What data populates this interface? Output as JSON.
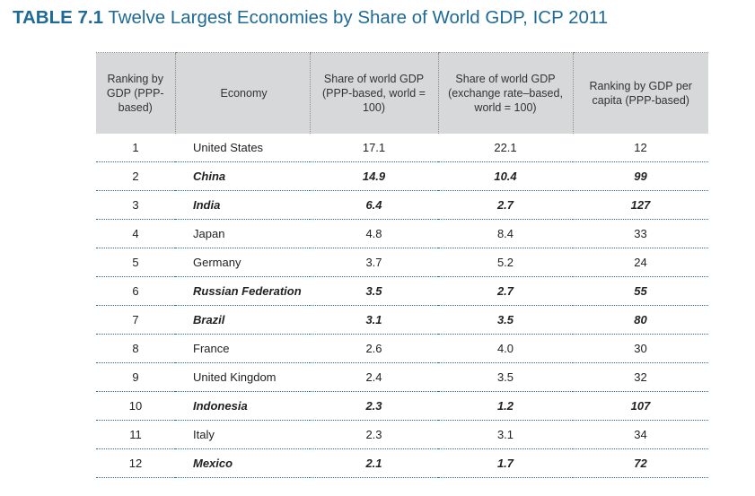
{
  "title": {
    "number": "TABLE 7.1",
    "text": "Twelve Largest Economies by Share of World GDP, ICP 2011"
  },
  "table": {
    "headers": [
      "Ranking by GDP (PPP-based)",
      "Economy",
      "Share of world GDP (PPP-based, world = 100)",
      "Share of world GDP (exchange rate–based, world = 100)",
      "Ranking by GDP per capita (PPP-based)"
    ],
    "rows": [
      {
        "rank": "1",
        "economy": "United States",
        "ppp": "17.1",
        "xr": "22.1",
        "pc": "12",
        "highlight": false
      },
      {
        "rank": "2",
        "economy": "China",
        "ppp": "14.9",
        "xr": "10.4",
        "pc": "99",
        "highlight": true
      },
      {
        "rank": "3",
        "economy": "India",
        "ppp": "6.4",
        "xr": "2.7",
        "pc": "127",
        "highlight": true
      },
      {
        "rank": "4",
        "economy": "Japan",
        "ppp": "4.8",
        "xr": "8.4",
        "pc": "33",
        "highlight": false
      },
      {
        "rank": "5",
        "economy": "Germany",
        "ppp": "3.7",
        "xr": "5.2",
        "pc": "24",
        "highlight": false
      },
      {
        "rank": "6",
        "economy": "Russian Federation",
        "ppp": "3.5",
        "xr": "2.7",
        "pc": "55",
        "highlight": true
      },
      {
        "rank": "7",
        "economy": "Brazil",
        "ppp": "3.1",
        "xr": "3.5",
        "pc": "80",
        "highlight": true
      },
      {
        "rank": "8",
        "economy": "France",
        "ppp": "2.6",
        "xr": "4.0",
        "pc": "30",
        "highlight": false
      },
      {
        "rank": "9",
        "economy": "United Kingdom",
        "ppp": "2.4",
        "xr": "3.5",
        "pc": "32",
        "highlight": false
      },
      {
        "rank": "10",
        "economy": "Indonesia",
        "ppp": "2.3",
        "xr": "1.2",
        "pc": "107",
        "highlight": true
      },
      {
        "rank": "11",
        "economy": "Italy",
        "ppp": "2.3",
        "xr": "3.1",
        "pc": "34",
        "highlight": false
      },
      {
        "rank": "12",
        "economy": "Mexico",
        "ppp": "2.1",
        "xr": "1.7",
        "pc": "72",
        "highlight": true
      }
    ]
  }
}
